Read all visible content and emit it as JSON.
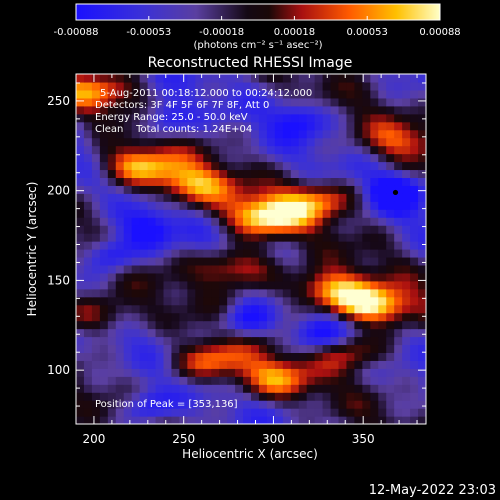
{
  "colorbar": {
    "ticks": [
      "-0.00088",
      "-0.00053",
      "-0.00018",
      "0.00018",
      "0.00053",
      "0.00088"
    ],
    "min": -0.00088,
    "max": 0.00088,
    "units_line": "(photons cm⁻² s⁻¹ asec⁻²)"
  },
  "chart_data": {
    "type": "heatmap",
    "title": "Reconstructed RHESSI Image",
    "xlabel": "Heliocentric X (arcsec)",
    "ylabel": "Heliocentric Y (arcsec)",
    "xlim": [
      190,
      385
    ],
    "ylim": [
      70,
      265
    ],
    "xticks": [
      200,
      250,
      300,
      350
    ],
    "yticks": [
      100,
      150,
      200,
      250
    ],
    "colormap": "blue-purple-black-red-orange-yellow-white",
    "info_lines": [
      "5-Aug-2011 00:18:12.000 to 00:24:12.000",
      "Detectors: 3F 4F 5F 6F 7F 8F, Att 0",
      "Energy Range: 25.0 - 50.0 keV",
      "Clean    Total counts: 1.24E+04"
    ],
    "peak_label": "Position of Peak = [353,136]",
    "peak_position": [
      353,
      136
    ],
    "marker_position": [
      368,
      199
    ],
    "bright_bands": [
      {
        "x": 225,
        "y": 214,
        "strength": 0.85
      },
      {
        "x": 255,
        "y": 203,
        "strength": 0.75
      },
      {
        "x": 295,
        "y": 186,
        "strength": 0.95
      },
      {
        "x": 325,
        "y": 195,
        "strength": 0.65
      },
      {
        "x": 280,
        "y": 157,
        "strength": 0.75
      },
      {
        "x": 330,
        "y": 145,
        "strength": 0.85
      },
      {
        "x": 355,
        "y": 136,
        "strength": 1.0
      },
      {
        "x": 200,
        "y": 131,
        "strength": 0.55
      },
      {
        "x": 265,
        "y": 105,
        "strength": 0.7
      },
      {
        "x": 300,
        "y": 95,
        "strength": 0.6
      },
      {
        "x": 345,
        "y": 111,
        "strength": 0.55
      },
      {
        "x": 200,
        "y": 255,
        "strength": 0.55
      },
      {
        "x": 370,
        "y": 228,
        "strength": 0.45
      }
    ],
    "dark_spots": [
      {
        "x": 368,
        "y": 199,
        "strength": 1.0
      },
      {
        "x": 210,
        "y": 165,
        "strength": 0.9
      },
      {
        "x": 230,
        "y": 178,
        "strength": 0.8
      },
      {
        "x": 285,
        "y": 128,
        "strength": 0.85
      },
      {
        "x": 325,
        "y": 120,
        "strength": 0.8
      },
      {
        "x": 240,
        "y": 240,
        "strength": 0.75
      },
      {
        "x": 315,
        "y": 240,
        "strength": 0.65
      },
      {
        "x": 230,
        "y": 80,
        "strength": 0.7
      }
    ]
  },
  "footer_date": "12-May-2022 23:03"
}
